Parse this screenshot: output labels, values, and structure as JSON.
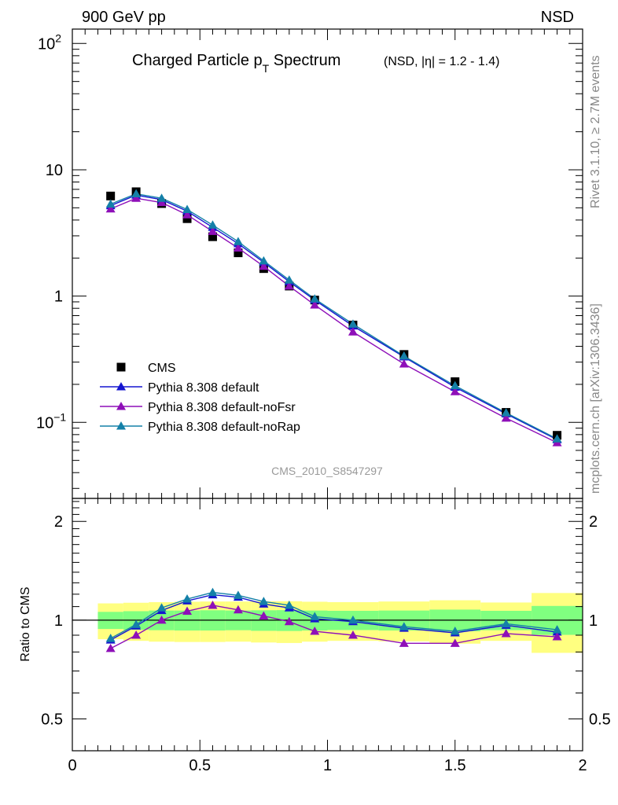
{
  "header": {
    "left": "900 GeV pp",
    "right": "NSD"
  },
  "side_text": {
    "rivet": "Rivet 3.1.10, ≥ 2.7M events",
    "mcplots": "mcplots.cern.ch [arXiv:1306.3436]"
  },
  "watermark": "CMS_2010_S8547297",
  "colors": {
    "cms": "#000000",
    "default": "#1515d0",
    "noFsr": "#8e0fb8",
    "noRap": "#1480a8",
    "band_outer": "#ffff80",
    "band_inner": "#80ff80"
  },
  "chart_data": [
    {
      "type": "scatter",
      "title": "Charged Particle p",
      "title_sub": "T",
      "title_rest": " Spectrum",
      "title_small": "(NSD, |η| = 1.2 - 1.4)",
      "yscale": "log",
      "xlim": [
        0,
        2
      ],
      "ylim": [
        0.025,
        130
      ],
      "y_ticks": [
        {
          "value": 100,
          "label": "10",
          "sup": "2"
        },
        {
          "value": 10,
          "label": "10",
          "sup": ""
        },
        {
          "value": 1,
          "label": "1",
          "sup": ""
        },
        {
          "value": 0.1,
          "label": "10",
          "sup": "−1"
        }
      ],
      "legend_position": "bottom-left",
      "x": [
        0.15,
        0.25,
        0.35,
        0.45,
        0.55,
        0.65,
        0.75,
        0.85,
        0.95,
        1.1,
        1.3,
        1.5,
        1.7,
        1.9
      ],
      "series": [
        {
          "name": "CMS",
          "key": "cms",
          "marker": "square",
          "values": [
            6.2,
            6.7,
            5.4,
            4.1,
            2.95,
            2.2,
            1.65,
            1.2,
            0.93,
            0.59,
            0.345,
            0.21,
            0.12,
            0.079
          ]
        },
        {
          "name": "Pythia 8.308 default",
          "key": "default",
          "marker": "triangle",
          "values": [
            5.2,
            6.3,
            5.8,
            4.7,
            3.5,
            2.6,
            1.85,
            1.3,
            0.93,
            0.58,
            0.33,
            0.19,
            0.117,
            0.073
          ]
        },
        {
          "name": "Pythia 8.308 default-noFsr",
          "key": "noFsr",
          "marker": "triangle",
          "values": [
            4.9,
            5.95,
            5.5,
            4.4,
            3.25,
            2.4,
            1.72,
            1.2,
            0.85,
            0.52,
            0.29,
            0.175,
            0.108,
            0.069
          ]
        },
        {
          "name": "Pythia 8.308 default-noRap",
          "key": "noRap",
          "marker": "triangle",
          "values": [
            5.35,
            6.45,
            5.95,
            4.85,
            3.65,
            2.7,
            1.9,
            1.34,
            0.95,
            0.6,
            0.335,
            0.195,
            0.119,
            0.074
          ]
        }
      ]
    },
    {
      "type": "line",
      "ylabel": "Ratio to CMS",
      "yscale": "log",
      "xlim": [
        0,
        2
      ],
      "ylim": [
        0.4,
        2.35
      ],
      "x_ticks": [
        {
          "value": 0,
          "label": "0"
        },
        {
          "value": 0.5,
          "label": "0.5"
        },
        {
          "value": 1,
          "label": "1"
        },
        {
          "value": 1.5,
          "label": "1.5"
        },
        {
          "value": 2,
          "label": "2"
        }
      ],
      "y_ticks": [
        {
          "value": 0.5,
          "label": "0.5"
        },
        {
          "value": 1,
          "label": "1"
        },
        {
          "value": 2,
          "label": "2"
        }
      ],
      "bands": {
        "edges": [
          0.1,
          0.2,
          0.3,
          0.4,
          0.5,
          0.6,
          0.7,
          0.8,
          0.9,
          1.0,
          1.2,
          1.4,
          1.6,
          1.8,
          2.0
        ],
        "outer_lo": [
          0.875,
          0.865,
          0.86,
          0.858,
          0.858,
          0.86,
          0.855,
          0.852,
          0.86,
          0.865,
          0.862,
          0.848,
          0.865,
          0.795
        ],
        "outer_hi": [
          1.125,
          1.13,
          1.135,
          1.138,
          1.14,
          1.14,
          1.142,
          1.142,
          1.138,
          1.135,
          1.14,
          1.15,
          1.132,
          1.21
        ],
        "inner_lo": [
          0.94,
          0.935,
          0.932,
          0.93,
          0.93,
          0.932,
          0.928,
          0.927,
          0.93,
          0.933,
          0.93,
          0.925,
          0.932,
          0.902
        ],
        "inner_hi": [
          1.06,
          1.065,
          1.07,
          1.07,
          1.072,
          1.07,
          1.072,
          1.073,
          1.07,
          1.068,
          1.07,
          1.077,
          1.068,
          1.105
        ]
      },
      "x": [
        0.15,
        0.25,
        0.35,
        0.45,
        0.55,
        0.65,
        0.75,
        0.85,
        0.95,
        1.1,
        1.3,
        1.5,
        1.7,
        1.9
      ],
      "series": [
        {
          "name": "Pythia 8.308 default",
          "key": "default",
          "values": [
            0.87,
            0.96,
            1.07,
            1.145,
            1.195,
            1.175,
            1.12,
            1.09,
            1.01,
            0.99,
            0.945,
            0.915,
            0.965,
            0.92
          ]
        },
        {
          "name": "Pythia 8.308 default-noFsr",
          "key": "noFsr",
          "values": [
            0.82,
            0.9,
            1.0,
            1.065,
            1.11,
            1.075,
            1.03,
            0.99,
            0.925,
            0.9,
            0.85,
            0.85,
            0.91,
            0.89
          ]
        },
        {
          "name": "Pythia 8.308 default-noRap",
          "key": "noRap",
          "values": [
            0.88,
            0.97,
            1.09,
            1.16,
            1.215,
            1.19,
            1.14,
            1.11,
            1.025,
            1.0,
            0.955,
            0.925,
            0.975,
            0.935
          ]
        }
      ]
    }
  ]
}
